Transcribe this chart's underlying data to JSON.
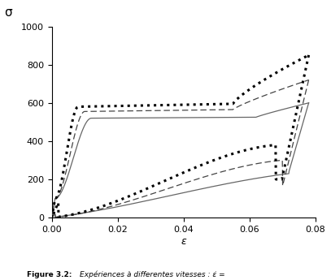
{
  "xlabel": "ε",
  "ylabel": "σ",
  "xlim": [
    0,
    0.08
  ],
  "ylim": [
    0,
    1000
  ],
  "xticks": [
    0,
    0.02,
    0.04,
    0.06,
    0.08
  ],
  "yticks": [
    0,
    200,
    400,
    600,
    800,
    1000
  ],
  "caption_bold": "Figure 3.2:",
  "caption_italic": " Expériences à differentes vitesses : ε̇ =",
  "bg_color": "#ffffff"
}
